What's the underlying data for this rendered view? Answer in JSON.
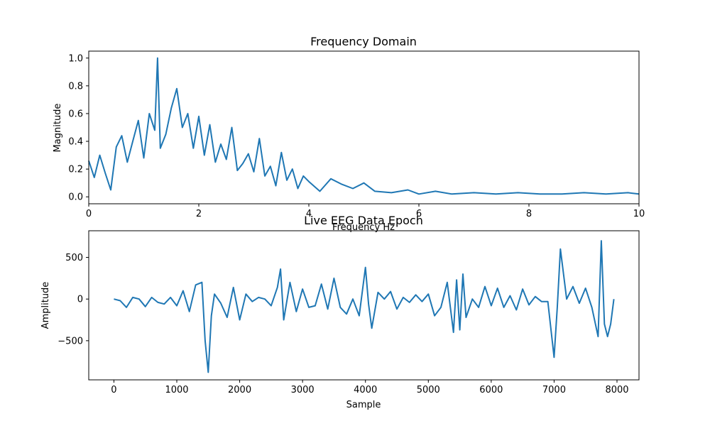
{
  "chart_data": [
    {
      "type": "line",
      "title": "Frequency Domain",
      "xlabel": "Frequency Hz",
      "ylabel": "Magnitude",
      "xlim": [
        0,
        10
      ],
      "ylim": [
        -0.05,
        1.05
      ],
      "xticks": [
        0,
        2,
        4,
        6,
        8,
        10
      ],
      "xtick_labels": [
        "0",
        "2",
        "4",
        "6",
        "8",
        "10"
      ],
      "yticks": [
        0.0,
        0.2,
        0.4,
        0.6,
        0.8,
        1.0
      ],
      "ytick_labels": [
        "0.0",
        "0.2",
        "0.4",
        "0.6",
        "0.8",
        "1.0"
      ],
      "grid": false,
      "color": "#1f77b4",
      "series": [
        {
          "x": [
            0,
            0.1,
            0.2,
            0.3,
            0.4,
            0.5,
            0.6,
            0.7,
            0.8,
            0.9,
            1.0,
            1.1,
            1.2,
            1.25,
            1.3,
            1.4,
            1.5,
            1.6,
            1.7,
            1.8,
            1.9,
            2.0,
            2.1,
            2.2,
            2.3,
            2.4,
            2.5,
            2.6,
            2.7,
            2.8,
            2.9,
            3.0,
            3.1,
            3.2,
            3.3,
            3.4,
            3.5,
            3.6,
            3.7,
            3.8,
            3.9,
            4.0,
            4.2,
            4.4,
            4.6,
            4.8,
            5.0,
            5.2,
            5.5,
            5.8,
            6.0,
            6.3,
            6.6,
            7.0,
            7.4,
            7.8,
            8.2,
            8.6,
            9.0,
            9.4,
            9.8,
            10.0
          ],
          "y": [
            0.26,
            0.14,
            0.3,
            0.17,
            0.05,
            0.36,
            0.44,
            0.25,
            0.4,
            0.55,
            0.28,
            0.6,
            0.48,
            1.0,
            0.35,
            0.45,
            0.64,
            0.78,
            0.5,
            0.6,
            0.35,
            0.58,
            0.3,
            0.52,
            0.25,
            0.38,
            0.27,
            0.5,
            0.19,
            0.24,
            0.31,
            0.18,
            0.42,
            0.15,
            0.22,
            0.08,
            0.32,
            0.12,
            0.2,
            0.06,
            0.15,
            0.11,
            0.04,
            0.13,
            0.09,
            0.06,
            0.1,
            0.04,
            0.03,
            0.05,
            0.02,
            0.04,
            0.02,
            0.03,
            0.02,
            0.03,
            0.02,
            0.02,
            0.03,
            0.02,
            0.03,
            0.02
          ]
        }
      ]
    },
    {
      "type": "line",
      "title": "Live EEG Data Epoch",
      "xlabel": "Sample",
      "ylabel": "Amplitude",
      "xlim": [
        -400,
        8350
      ],
      "ylim": [
        -970,
        820
      ],
      "xticks": [
        0,
        1000,
        2000,
        3000,
        4000,
        5000,
        6000,
        7000,
        8000
      ],
      "xtick_labels": [
        "0",
        "1000",
        "2000",
        "3000",
        "4000",
        "5000",
        "6000",
        "7000",
        "8000"
      ],
      "yticks": [
        -500,
        0,
        500
      ],
      "ytick_labels": [
        "−500",
        "0",
        "500"
      ],
      "grid": false,
      "color": "#1f77b4",
      "series": [
        {
          "x": [
            0,
            100,
            200,
            300,
            400,
            500,
            600,
            700,
            800,
            900,
            1000,
            1100,
            1200,
            1300,
            1400,
            1450,
            1500,
            1550,
            1600,
            1700,
            1800,
            1900,
            2000,
            2100,
            2200,
            2300,
            2400,
            2500,
            2600,
            2650,
            2700,
            2800,
            2900,
            3000,
            3100,
            3200,
            3300,
            3400,
            3500,
            3600,
            3700,
            3800,
            3900,
            4000,
            4050,
            4100,
            4200,
            4300,
            4400,
            4500,
            4600,
            4700,
            4800,
            4900,
            5000,
            5100,
            5200,
            5300,
            5400,
            5450,
            5500,
            5550,
            5600,
            5700,
            5800,
            5900,
            6000,
            6100,
            6200,
            6300,
            6400,
            6500,
            6600,
            6700,
            6800,
            6900,
            7000,
            7050,
            7100,
            7150,
            7200,
            7300,
            7400,
            7500,
            7600,
            7700,
            7750,
            7800,
            7850,
            7900,
            7950
          ],
          "y": [
            0,
            -20,
            -100,
            20,
            0,
            -90,
            20,
            -40,
            -60,
            20,
            -80,
            100,
            -150,
            170,
            200,
            -500,
            -880,
            -200,
            60,
            -50,
            -220,
            140,
            -250,
            60,
            -30,
            20,
            0,
            -80,
            140,
            360,
            -250,
            200,
            -150,
            120,
            -100,
            -80,
            180,
            -120,
            250,
            -100,
            -180,
            0,
            -200,
            380,
            -60,
            -350,
            80,
            0,
            90,
            -120,
            20,
            -40,
            50,
            -30,
            60,
            -200,
            -100,
            200,
            -400,
            230,
            -370,
            300,
            -220,
            0,
            -100,
            150,
            -80,
            130,
            -100,
            40,
            -130,
            120,
            -70,
            30,
            -30,
            -30,
            -700,
            -100,
            600,
            300,
            0,
            150,
            -50,
            130,
            -100,
            -450,
            700,
            -300,
            -450,
            -300,
            0
          ]
        }
      ]
    }
  ]
}
